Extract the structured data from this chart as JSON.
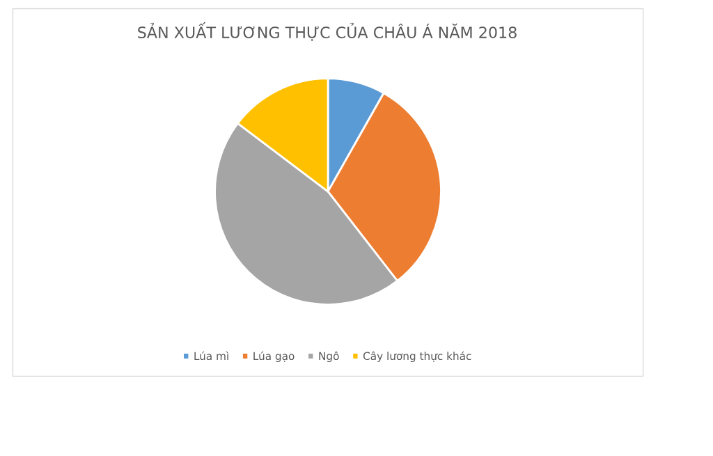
{
  "chart_data": {
    "type": "pie",
    "title": "SẢN XUẤT LƯƠNG THỰC CỦA CHÂU Á NĂM 2018",
    "categories": [
      "Lúa mì",
      "Lúa gạo",
      "Ngô",
      "Cây lương thực khác"
    ],
    "values": [
      8.2,
      31.3,
      45.8,
      14.7
    ],
    "colors": [
      "#5b9bd5",
      "#ed7d31",
      "#a5a5a5",
      "#ffc000"
    ],
    "legend": "bottom"
  }
}
